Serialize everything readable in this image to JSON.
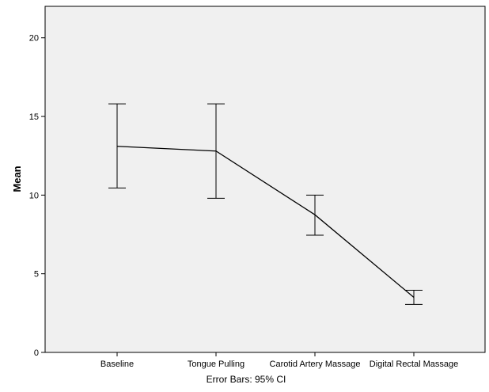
{
  "chart_data": {
    "type": "line",
    "categories": [
      "Baseline",
      "Tongue Pulling",
      "Carotid Artery Massage",
      "Digital Rectal Massage"
    ],
    "values": [
      13.1,
      12.8,
      8.75,
      3.5
    ],
    "error_low": [
      10.45,
      9.8,
      7.45,
      3.05
    ],
    "error_high": [
      15.8,
      15.8,
      10.0,
      3.95
    ],
    "ylabel": "Mean",
    "xlabel": "",
    "ylim": [
      0,
      22
    ],
    "yticks": [
      0,
      5,
      10,
      15,
      20
    ],
    "error_note": "Error Bars: 95% CI",
    "grid": false,
    "colors": {
      "plot_background": "#f0f0f0",
      "line": "#000000",
      "frame": "#000000"
    }
  }
}
